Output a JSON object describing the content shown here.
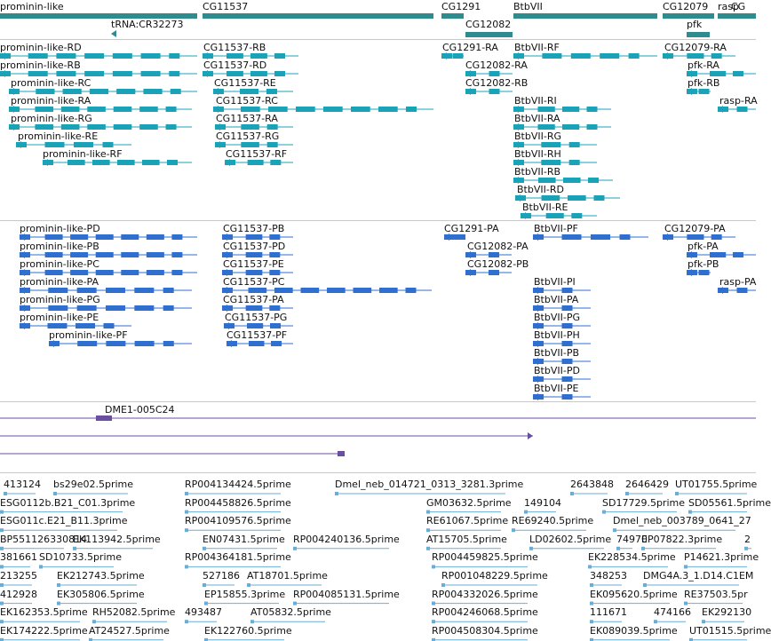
{
  "colors": {
    "gene": "#2e8b8e",
    "transcript": "#1aa3b8",
    "protein": "#2f6fd0",
    "clone": "#6a4fa0",
    "est": "#6aaed8"
  },
  "genes": [
    {
      "label": "prominin-like",
      "start": 0,
      "end": 222
    },
    {
      "label": "tRNA:CR32273",
      "start": 125,
      "end": 131
    },
    {
      "label": "CG11537",
      "start": 228,
      "end": 488
    },
    {
      "label": "CG1291",
      "start": 497,
      "end": 522
    },
    {
      "label": "CG12082",
      "start": 524,
      "end": 577
    },
    {
      "label": "BtbVII",
      "start": 578,
      "end": 740
    },
    {
      "label": "CG12079",
      "start": 746,
      "end": 804
    },
    {
      "label": "pfk",
      "start": 773,
      "end": 799
    },
    {
      "label": "rasp",
      "start": 808,
      "end": 851
    },
    {
      "label": "CG",
      "start": 823,
      "end": 851
    }
  ],
  "transcripts": [
    {
      "label": "prominin-like-RD",
      "start": 0,
      "end": 222
    },
    {
      "label": "prominin-like-RB",
      "start": 0,
      "end": 222
    },
    {
      "label": "prominin-like-RC",
      "start": 10,
      "end": 222
    },
    {
      "label": "prominin-like-RA",
      "start": 10,
      "end": 216
    },
    {
      "label": "prominin-like-RG",
      "start": 10,
      "end": 216
    },
    {
      "label": "prominin-like-RE",
      "start": 18,
      "end": 148
    },
    {
      "label": "prominin-like-RF",
      "start": 48,
      "end": 216
    },
    {
      "label": "CG11537-RB",
      "start": 228,
      "end": 336
    },
    {
      "label": "CG11537-RD",
      "start": 228,
      "end": 336
    },
    {
      "label": "CG11537-RE",
      "start": 240,
      "end": 330
    },
    {
      "label": "CG11537-RC",
      "start": 240,
      "end": 488
    },
    {
      "label": "CG11537-RA",
      "start": 242,
      "end": 330
    },
    {
      "label": "CG11537-RG",
      "start": 242,
      "end": 330
    },
    {
      "label": "CG11537-RF",
      "start": 253,
      "end": 330
    },
    {
      "label": "CG1291-RA",
      "start": 497,
      "end": 522
    },
    {
      "label": "CG12082-RA",
      "start": 524,
      "end": 577
    },
    {
      "label": "CG12082-RB",
      "start": 524,
      "end": 577
    },
    {
      "label": "BtbVII-RF",
      "start": 578,
      "end": 740
    },
    {
      "label": "BtbVII-RI",
      "start": 578,
      "end": 688
    },
    {
      "label": "BtbVII-RA",
      "start": 578,
      "end": 688
    },
    {
      "label": "BtbVII-RG",
      "start": 578,
      "end": 672
    },
    {
      "label": "BtbVII-RH",
      "start": 578,
      "end": 672
    },
    {
      "label": "BtbVII-RB",
      "start": 578,
      "end": 690
    },
    {
      "label": "BtbVII-RD",
      "start": 580,
      "end": 698
    },
    {
      "label": "BtbVII-RE",
      "start": 586,
      "end": 672
    },
    {
      "label": "CG12079-RA",
      "start": 746,
      "end": 828
    },
    {
      "label": "pfk-RA",
      "start": 773,
      "end": 851
    },
    {
      "label": "pfk-RB",
      "start": 773,
      "end": 800
    },
    {
      "label": "rasp-RA",
      "start": 808,
      "end": 851
    }
  ],
  "proteins": [
    {
      "label": "prominin-like-PD",
      "start": 22,
      "end": 222
    },
    {
      "label": "prominin-like-PB",
      "start": 22,
      "end": 222
    },
    {
      "label": "prominin-like-PC",
      "start": 22,
      "end": 222
    },
    {
      "label": "prominin-like-PA",
      "start": 22,
      "end": 216
    },
    {
      "label": "prominin-like-PG",
      "start": 22,
      "end": 216
    },
    {
      "label": "prominin-like-PE",
      "start": 22,
      "end": 148
    },
    {
      "label": "prominin-like-PF",
      "start": 55,
      "end": 216
    },
    {
      "label": "CG11537-PB",
      "start": 250,
      "end": 330
    },
    {
      "label": "CG11537-PD",
      "start": 250,
      "end": 330
    },
    {
      "label": "CG11537-PE",
      "start": 250,
      "end": 330
    },
    {
      "label": "CG11537-PC",
      "start": 250,
      "end": 486
    },
    {
      "label": "CG11537-PA",
      "start": 250,
      "end": 330
    },
    {
      "label": "CG11537-PG",
      "start": 252,
      "end": 330
    },
    {
      "label": "CG11537-PF",
      "start": 255,
      "end": 330
    },
    {
      "label": "CG1291-PA",
      "start": 500,
      "end": 524
    },
    {
      "label": "CG12082-PA",
      "start": 524,
      "end": 576
    },
    {
      "label": "CG12082-PB",
      "start": 524,
      "end": 576
    },
    {
      "label": "BtbVII-PF",
      "start": 600,
      "end": 730
    },
    {
      "label": "BtbVII-PI",
      "start": 600,
      "end": 665
    },
    {
      "label": "BtbVII-PA",
      "start": 600,
      "end": 665
    },
    {
      "label": "BtbVII-PG",
      "start": 600,
      "end": 665
    },
    {
      "label": "BtbVII-PH",
      "start": 600,
      "end": 665
    },
    {
      "label": "BtbVII-PB",
      "start": 600,
      "end": 665
    },
    {
      "label": "BtbVII-PD",
      "start": 600,
      "end": 665
    },
    {
      "label": "BtbVII-PE",
      "start": 600,
      "end": 665
    },
    {
      "label": "CG12079-PA",
      "start": 746,
      "end": 828
    },
    {
      "label": "pfk-PA",
      "start": 773,
      "end": 851
    },
    {
      "label": "pfk-PB",
      "start": 773,
      "end": 800
    },
    {
      "label": "rasp-PA",
      "start": 808,
      "end": 851
    }
  ],
  "clones": [
    {
      "label": "DME1-005C24",
      "start": 0,
      "end": 851
    },
    {
      "label": "",
      "start": 0,
      "end": 600
    },
    {
      "label": "",
      "start": 0,
      "end": 388
    }
  ],
  "ests": [
    [
      "413124",
      "bs29e02.5prime",
      "RP004134424.5prime",
      "Dmel_neb_014721_0313_3281.3prime",
      "2643848",
      "2646429",
      "UT01755.5prime"
    ],
    [
      "ESG0112b.B21_C01.3prime",
      "RP004458826.5prime",
      "GM03632.5prime",
      "149104",
      "SD17729.5prime",
      "SD05561.5prime"
    ],
    [
      "ESG011c.E21_B11.3prime",
      "RP004109576.5prime",
      "RE61067.5prime",
      "RE69240.5prime",
      "Dmel_neb_003789_0641_27"
    ],
    [
      "BP551126330814",
      "EK113942.5prime",
      "EN07431.5prime",
      "RP004240136.5prime",
      "AT15705.5prime",
      "LD02602.5prime",
      "74970",
      "EP07822.3prime",
      "2"
    ],
    [
      "381661",
      "SD10733.5prime",
      "RP004364181.5prime",
      "RP004459825.5prime",
      "EK228534.5prime",
      "P14621.3prime"
    ],
    [
      "213255",
      "EK212743.5prime",
      "527186",
      "AT18701.5prime",
      "RP001048229.5prime",
      "348253",
      "DMG4A.3_1.D14.C1EM"
    ],
    [
      "412928",
      "EK305806.5prime",
      "EP15855.3prime",
      "RP004085131.5prime",
      "RP004332026.5prime",
      "EK095620.5prime",
      "RE37503.5pr"
    ],
    [
      "EK162353.5prime",
      "RH52082.5prime",
      "493487",
      "AT05832.5prime",
      "RP004246068.5prime",
      "111671",
      "474166",
      "EK292130"
    ],
    [
      "EK174222.5prime",
      "AT24527.5prime",
      "EK122760.5prime",
      "RP004508304.5prime",
      "EK089039.5prime",
      "UT01515.5prime"
    ]
  ]
}
